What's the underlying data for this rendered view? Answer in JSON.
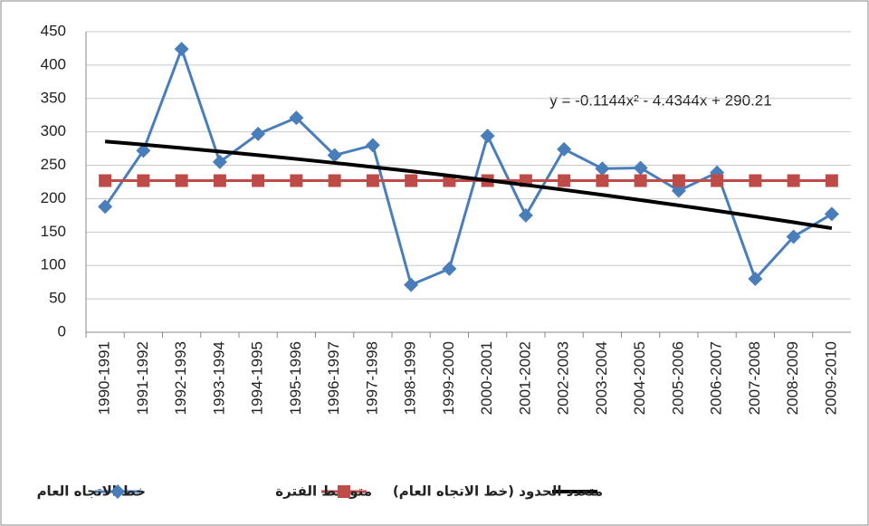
{
  "chart_data": {
    "type": "line",
    "annotation": "y = -0.1144x² - 4.4344x + 290.21",
    "categories": [
      "1990-1991",
      "1991-1992",
      "1992-1993",
      "1993-1994",
      "1994-1995",
      "1995-1996",
      "1996-1997",
      "1997-1998",
      "1998-1999",
      "1999-2000",
      "2000-2001",
      "2001-2002",
      "2002-2003",
      "2003-2004",
      "2004-2005",
      "2005-2006",
      "2006-2007",
      "2007-2008",
      "2008-2009",
      "2009-2010"
    ],
    "series": [
      {
        "name": "خط الاتجاه العام",
        "color": "#4a7ebb",
        "marker": "diamond",
        "values": [
          188,
          272,
          424,
          255,
          297,
          321,
          265,
          280,
          71,
          95,
          294,
          175,
          274,
          245,
          246,
          212,
          239,
          80,
          143,
          177
        ]
      },
      {
        "name": "متوسط الفترة",
        "color": "#be4b48",
        "marker": "square",
        "values": [
          227,
          227,
          227,
          227,
          227,
          227,
          227,
          227,
          227,
          227,
          227,
          227,
          227,
          227,
          227,
          227,
          227,
          227,
          227,
          227
        ]
      },
      {
        "name": "متعدد الحدود (خط الاتجاه العام)",
        "color": "#000000",
        "marker": "none",
        "values": [
          285.66,
          280.88,
          275.88,
          270.64,
          265.18,
          259.49,
          253.56,
          247.41,
          241.03,
          234.43,
          227.59,
          220.52,
          213.23,
          205.71,
          197.95,
          189.97,
          181.76,
          173.33,
          164.66,
          155.76
        ]
      }
    ],
    "ylim": [
      0,
      450
    ],
    "yticks": [
      0,
      50,
      100,
      150,
      200,
      250,
      300,
      350,
      400,
      450
    ],
    "grid": true
  }
}
